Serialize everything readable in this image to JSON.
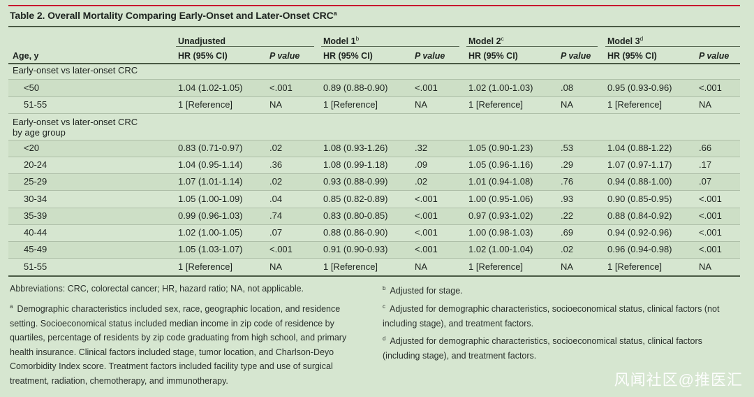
{
  "title": "Table 2. Overall Mortality Comparing Early-Onset and Later-Onset CRC",
  "title_sup": "a",
  "headers": {
    "age": "Age, y",
    "groups": [
      {
        "label": "Unadjusted",
        "sup": ""
      },
      {
        "label": "Model 1",
        "sup": "b"
      },
      {
        "label": "Model 2",
        "sup": "c"
      },
      {
        "label": "Model 3",
        "sup": "d"
      }
    ],
    "hr": "HR (95% CI)",
    "p": "P value"
  },
  "sections": [
    {
      "label": "Early-onset vs later-onset CRC",
      "label2": "",
      "rows": [
        {
          "age": "<50",
          "cells": [
            "1.04 (1.02-1.05)",
            "<.001",
            "0.89 (0.88-0.90)",
            "<.001",
            "1.02 (1.00-1.03)",
            ".08",
            "0.95 (0.93-0.96)",
            "<.001"
          ]
        },
        {
          "age": "51-55",
          "cells": [
            "1 [Reference]",
            "NA",
            "1 [Reference]",
            "NA",
            "1 [Reference]",
            "NA",
            "1 [Reference]",
            "NA"
          ]
        }
      ]
    },
    {
      "label": "Early-onset vs later-onset CRC",
      "label2": "by age group",
      "rows": [
        {
          "age": "<20",
          "cells": [
            "0.83 (0.71-0.97)",
            ".02",
            "1.08 (0.93-1.26)",
            ".32",
            "1.05 (0.90-1.23)",
            ".53",
            "1.04 (0.88-1.22)",
            ".66"
          ]
        },
        {
          "age": "20-24",
          "cells": [
            "1.04 (0.95-1.14)",
            ".36",
            "1.08 (0.99-1.18)",
            ".09",
            "1.05 (0.96-1.16)",
            ".29",
            "1.07 (0.97-1.17)",
            ".17"
          ]
        },
        {
          "age": "25-29",
          "cells": [
            "1.07 (1.01-1.14)",
            ".02",
            "0.93 (0.88-0.99)",
            ".02",
            "1.01 (0.94-1.08)",
            ".76",
            "0.94 (0.88-1.00)",
            ".07"
          ]
        },
        {
          "age": "30-34",
          "cells": [
            "1.05 (1.00-1.09)",
            ".04",
            "0.85 (0.82-0.89)",
            "<.001",
            "1.00 (0.95-1.06)",
            ".93",
            "0.90 (0.85-0.95)",
            "<.001"
          ]
        },
        {
          "age": "35-39",
          "cells": [
            "0.99 (0.96-1.03)",
            ".74",
            "0.83 (0.80-0.85)",
            "<.001",
            "0.97 (0.93-1.02)",
            ".22",
            "0.88 (0.84-0.92)",
            "<.001"
          ]
        },
        {
          "age": "40-44",
          "cells": [
            "1.02 (1.00-1.05)",
            ".07",
            "0.88 (0.86-0.90)",
            "<.001",
            "1.00 (0.98-1.03)",
            ".69",
            "0.94 (0.92-0.96)",
            "<.001"
          ]
        },
        {
          "age": "45-49",
          "cells": [
            "1.05 (1.03-1.07)",
            "<.001",
            "0.91 (0.90-0.93)",
            "<.001",
            "1.02 (1.00-1.04)",
            ".02",
            "0.96 (0.94-0.98)",
            "<.001"
          ]
        },
        {
          "age": "51-55",
          "cells": [
            "1 [Reference]",
            "NA",
            "1 [Reference]",
            "NA",
            "1 [Reference]",
            "NA",
            "1 [Reference]",
            "NA"
          ]
        }
      ]
    }
  ],
  "footnotes": {
    "abbreviations": "Abbreviations: CRC, colorectal cancer; HR, hazard ratio; NA, not applicable.",
    "a": {
      "mark": "a",
      "text": "Demographic characteristics included sex, race, geographic location, and residence setting. Socioeconomical status included median income in zip code of residence by quartiles, percentage of residents by zip code graduating from high school, and primary health insurance. Clinical factors included stage, tumor location, and Charlson-Deyo Comorbidity Index score. Treatment factors included facility type and use of surgical treatment, radiation, chemotherapy, and immunotherapy."
    },
    "b": {
      "mark": "b",
      "text": "Adjusted for stage."
    },
    "c": {
      "mark": "c",
      "text": "Adjusted for demographic characteristics, socioeconomical status, clinical factors (not including stage), and treatment factors."
    },
    "d": {
      "mark": "d",
      "text": "Adjusted for demographic characteristics, socioeconomical status, clinical factors (including stage), and treatment factors."
    }
  },
  "watermark": "风闻社区@推医汇",
  "colors": {
    "accent": "#c8102e",
    "background": "#d6e6d0"
  }
}
